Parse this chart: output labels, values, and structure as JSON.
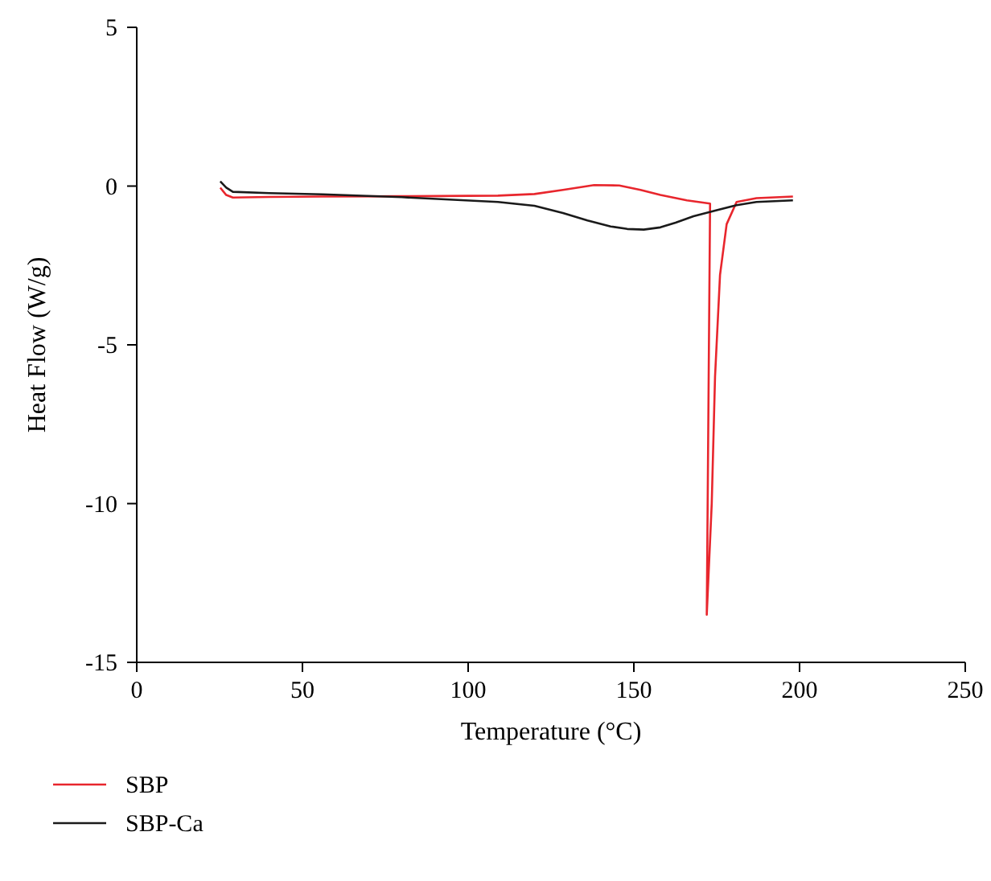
{
  "chart_data": {
    "type": "line",
    "xlabel": "Temperature (°C)",
    "ylabel": "Heat Flow (W/g)",
    "xlim": [
      0,
      250
    ],
    "ylim": [
      -15,
      5
    ],
    "xticks": [
      0,
      50,
      100,
      150,
      200,
      250
    ],
    "yticks": [
      5,
      0,
      -5,
      -10,
      -15
    ],
    "grid": false,
    "legend": "bottom",
    "marker": "none",
    "line_style": "solid",
    "series": [
      {
        "name": "SBP",
        "color": "#e8262d",
        "x": [
          25.2,
          27,
          29,
          40,
          56,
          80,
          109,
          120,
          128.6,
          138,
          145.6,
          152,
          158,
          166,
          173,
          172,
          173.5,
          174.5,
          176,
          178,
          181,
          187,
          198
        ],
        "values": [
          -0.05,
          -0.28,
          -0.36,
          -0.34,
          -0.33,
          -0.32,
          -0.3,
          -0.25,
          -0.12,
          0.03,
          0.02,
          -0.12,
          -0.28,
          -0.45,
          -0.55,
          -13.5,
          -10,
          -6,
          -2.8,
          -1.2,
          -0.5,
          -0.38,
          -0.33
        ]
      },
      {
        "name": "SBP-Ca",
        "color": "#1a1a1a",
        "x": [
          25.2,
          27,
          29,
          40,
          56,
          80,
          109,
          120,
          128.6,
          136,
          143,
          148,
          153,
          158,
          162.6,
          168,
          175,
          181,
          187,
          198
        ],
        "values": [
          0.15,
          -0.05,
          -0.18,
          -0.22,
          -0.26,
          -0.35,
          -0.5,
          -0.62,
          -0.85,
          -1.08,
          -1.27,
          -1.35,
          -1.37,
          -1.3,
          -1.15,
          -0.95,
          -0.76,
          -0.6,
          -0.5,
          -0.45
        ]
      }
    ]
  }
}
